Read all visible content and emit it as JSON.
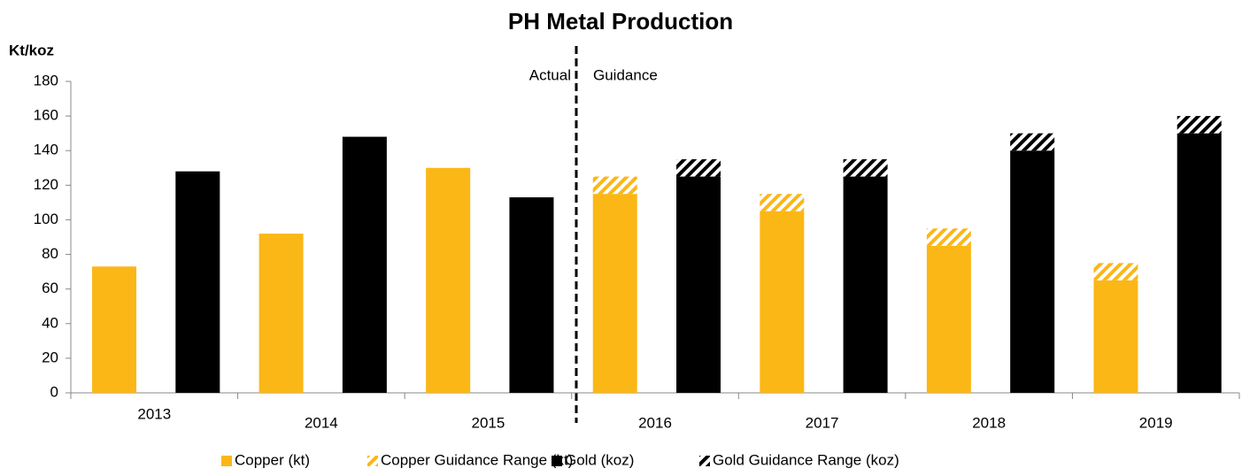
{
  "chart_data": {
    "type": "bar",
    "title": "PH Metal Production",
    "y_label": "Kt/koz",
    "annotations": [
      "Actual",
      "Guidance"
    ],
    "categories": [
      "2013",
      "2014",
      "2015",
      "2016",
      "2017",
      "2018",
      "2019"
    ],
    "series": [
      {
        "name": "Copper (kt)",
        "color": "#fbb716",
        "hatch": false,
        "values": [
          73,
          92,
          130,
          115,
          105,
          85,
          65
        ]
      },
      {
        "name": "Copper Guidance Range (kt)",
        "color": "#fbb716",
        "hatch": true,
        "values": [
          null,
          null,
          null,
          10,
          10,
          10,
          10
        ]
      },
      {
        "name": "Gold (koz)",
        "color": "#000000",
        "hatch": false,
        "values": [
          128,
          148,
          113,
          125,
          125,
          140,
          150
        ]
      },
      {
        "name": "Gold Guidance Range (koz)",
        "color": "#000000",
        "hatch": true,
        "values": [
          null,
          null,
          null,
          10,
          10,
          10,
          10
        ]
      }
    ],
    "ylim": [
      0,
      180
    ],
    "yticks": [
      0,
      20,
      40,
      60,
      80,
      100,
      120,
      140,
      160,
      180
    ],
    "grid": false,
    "legend": "bottom"
  }
}
